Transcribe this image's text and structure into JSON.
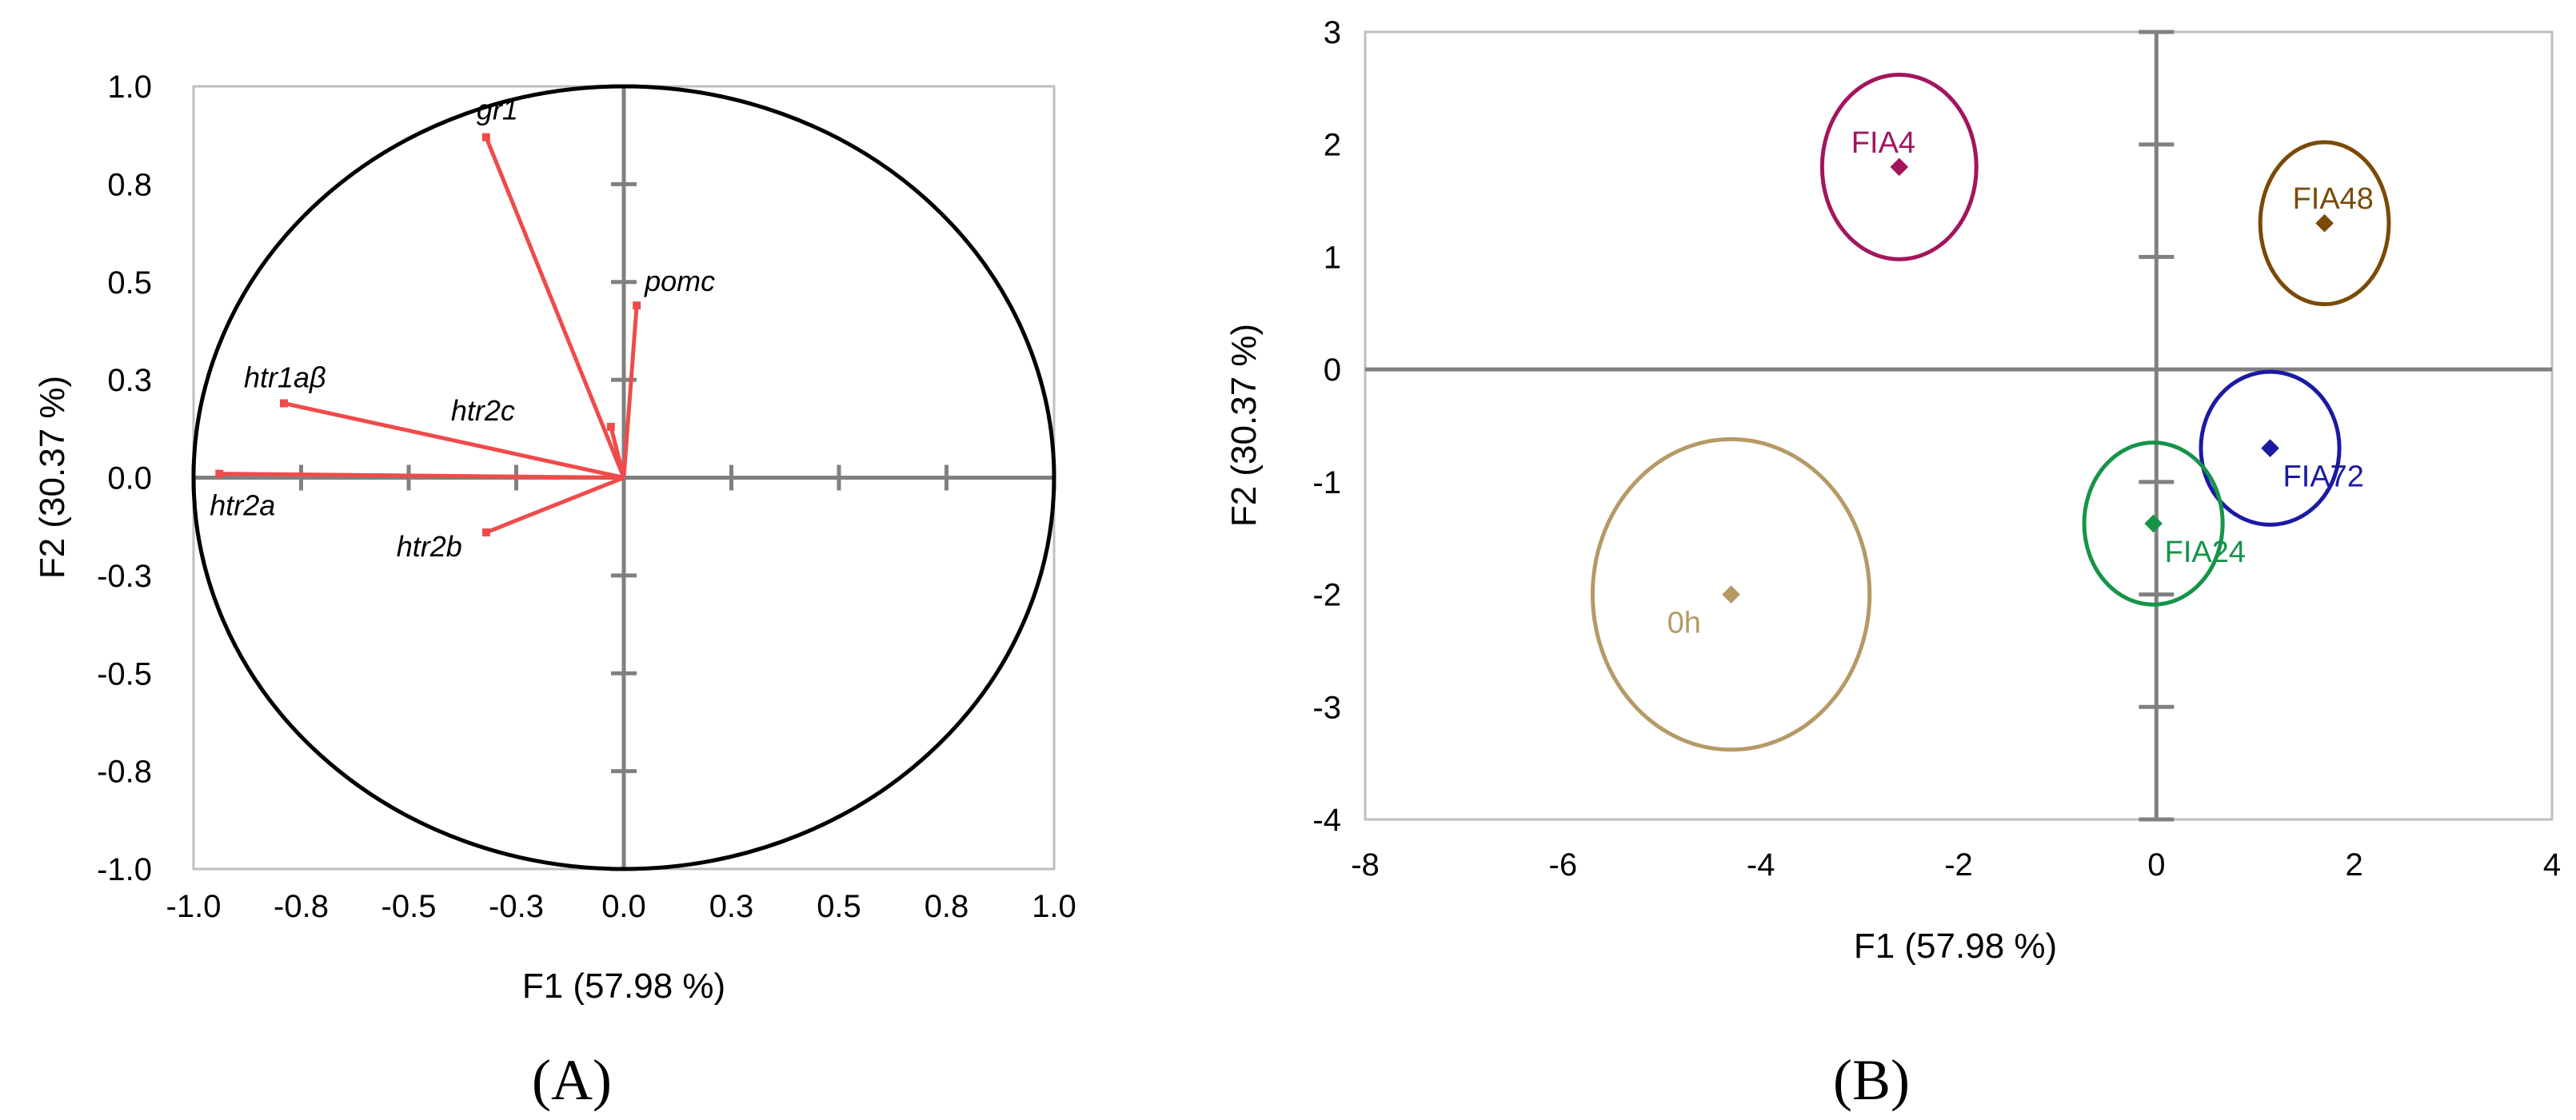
{
  "chart_data": [
    {
      "type": "scatter",
      "panel_label": "(A)",
      "xlabel": "F1 (57.98 %)",
      "ylabel": "F2 (30.37 %)",
      "xlim": [
        -1.0,
        1.0
      ],
      "ylim": [
        -1.0,
        1.0
      ],
      "xticks": [
        -1.0,
        -0.75,
        -0.5,
        -0.25,
        0.0,
        0.25,
        0.5,
        0.75,
        1.0
      ],
      "yticks": [
        -1.0,
        -0.75,
        -0.5,
        -0.25,
        0.0,
        0.25,
        0.5,
        0.75,
        1.0
      ],
      "xtick_labels": [
        "-1.0",
        "-0.8",
        "-0.5",
        "-0.3",
        "0.0",
        "0.3",
        "0.5",
        "0.8",
        "1.0"
      ],
      "ytick_labels": [
        "-1.0",
        "-0.8",
        "-0.5",
        "-0.3",
        "0.0",
        "0.3",
        "0.5",
        "0.8",
        "1.0"
      ],
      "correlation_circle": true,
      "vector_color": "#ef4b4b",
      "vectors": [
        {
          "label": "gr1",
          "x": -0.32,
          "y": 0.87
        },
        {
          "label": "pomc",
          "x": 0.03,
          "y": 0.44
        },
        {
          "label": "htr1aβ",
          "x": -0.79,
          "y": 0.19
        },
        {
          "label": "htr2c",
          "x": -0.03,
          "y": 0.13
        },
        {
          "label": "htr2a",
          "x": -0.94,
          "y": 0.01
        },
        {
          "label": "htr2b",
          "x": -0.32,
          "y": -0.14
        }
      ]
    },
    {
      "type": "scatter",
      "panel_label": "(B)",
      "xlabel": "F1 (57.98 %)",
      "ylabel": "F2 (30.37 %)",
      "xlim": [
        -8,
        4
      ],
      "ylim": [
        -4,
        3
      ],
      "xticks": [
        -8,
        -6,
        -4,
        -2,
        0,
        2,
        4
      ],
      "yticks": [
        -4,
        -3,
        -2,
        -1,
        0,
        1,
        2,
        3
      ],
      "xtick_labels": [
        "-8",
        "-6",
        "-4",
        "-2",
        "0",
        "2",
        "4"
      ],
      "ytick_labels": [
        "-4",
        "-3",
        "-2",
        "-1",
        "0",
        "1",
        "2",
        "3"
      ],
      "groups": [
        {
          "label": "FIA4",
          "x": -2.6,
          "y": 1.8,
          "rx": 0.78,
          "ry": 0.82,
          "color": "#a3155e"
        },
        {
          "label": "FIA48",
          "x": 1.7,
          "y": 1.3,
          "rx": 0.65,
          "ry": 0.72,
          "color": "#7b4a07"
        },
        {
          "label": "FIA72",
          "x": 1.15,
          "y": -0.7,
          "rx": 0.7,
          "ry": 0.68,
          "color": "#1c1aa3"
        },
        {
          "label": "FIA24",
          "x": -0.03,
          "y": -1.37,
          "rx": 0.7,
          "ry": 0.72,
          "color": "#159447"
        },
        {
          "label": "0h",
          "x": -4.3,
          "y": -2.0,
          "rx": 1.4,
          "ry": 1.38,
          "color": "#b59a66"
        }
      ]
    }
  ]
}
